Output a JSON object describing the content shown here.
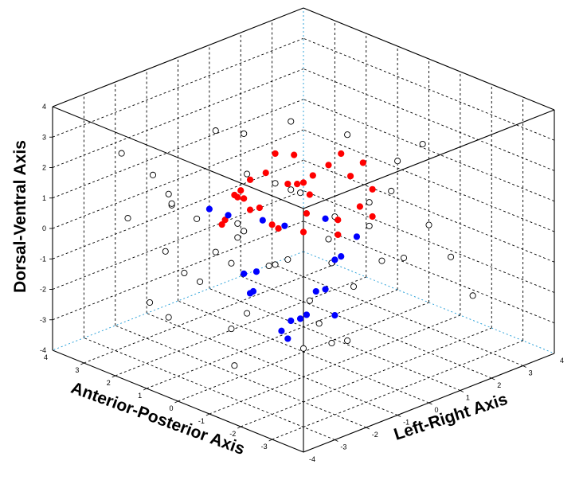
{
  "chart_data": {
    "type": "scatter3d",
    "title": "",
    "axes": {
      "x": {
        "label": "Anterior-Posterior Axis",
        "range": [
          -4,
          4
        ],
        "ticks": [
          "-3",
          "-2",
          "-1",
          "0",
          "1",
          "2",
          "3",
          "4"
        ]
      },
      "y": {
        "label": "Left-Right Axis",
        "range": [
          -4,
          4
        ],
        "ticks": [
          "-4",
          "-3",
          "-2",
          "-1",
          "0",
          "1",
          "2",
          "3",
          "4"
        ]
      },
      "z": {
        "label": "Dorsal-Ventral Axis",
        "range": [
          -4,
          4
        ],
        "ticks": [
          "-4",
          "-3",
          "-2",
          "-1",
          "0",
          "1",
          "2",
          "3",
          "4"
        ]
      }
    },
    "grid": true,
    "legend": null,
    "series": [
      {
        "marker": "open-circle",
        "color": "#000000",
        "points": [
          [
            2.5,
            -3.1,
            0.6
          ],
          [
            1.8,
            -2.6,
            -0.4
          ],
          [
            3.1,
            -1.7,
            1.2
          ],
          [
            -0.5,
            -2.8,
            -1.9
          ],
          [
            0.6,
            -1.2,
            -2.5
          ],
          [
            -1.3,
            -2.2,
            0.3
          ],
          [
            2.2,
            -0.6,
            -1.4
          ],
          [
            -2.4,
            -1.5,
            -2.1
          ],
          [
            1.0,
            -3.3,
            2.1
          ],
          [
            -1.9,
            -0.9,
            1.6
          ],
          [
            0.2,
            -1.9,
            0.9
          ],
          [
            2.8,
            -2.1,
            -2.7
          ],
          [
            -3.0,
            -2.5,
            -0.8
          ],
          [
            1.5,
            -0.4,
            2.7
          ],
          [
            -0.8,
            -3.0,
            -2.9
          ],
          [
            3.3,
            -0.9,
            -0.2
          ],
          [
            -2.7,
            -0.2,
            0.2
          ],
          [
            0.9,
            -2.4,
            -1.1
          ],
          [
            -1.5,
            -1.6,
            2.5
          ],
          [
            2.0,
            -1.4,
            0.1
          ],
          [
            -0.2,
            -0.7,
            -0.6
          ],
          [
            1.3,
            -2.9,
            1.5
          ],
          [
            -2.1,
            -3.2,
            1.0
          ],
          [
            2.6,
            0.3,
            -2.3
          ],
          [
            -1.1,
            0.5,
            -1.6
          ],
          [
            0.4,
            -3.4,
            -0.2
          ],
          [
            3.0,
            -2.8,
            2.4
          ],
          [
            -3.3,
            -1.2,
            2.0
          ],
          [
            1.7,
            0.8,
            0.5
          ],
          [
            -0.4,
            -2.2,
            2.9
          ],
          [
            0.0,
            0.2,
            -2.4
          ],
          [
            2.4,
            -1.9,
            -3.1
          ],
          [
            -2.9,
            -2.9,
            -1.5
          ],
          [
            1.1,
            -1.0,
            -0.3
          ],
          [
            -1.7,
            -0.3,
            -2.8
          ],
          [
            3.4,
            0.6,
            1.6
          ],
          [
            -0.9,
            1.2,
            0.8
          ],
          [
            0.7,
            1.5,
            -1.2
          ],
          [
            2.1,
            1.7,
            2.0
          ],
          [
            -2.2,
            1.0,
            -0.4
          ],
          [
            1.4,
            2.3,
            -2.6
          ],
          [
            -0.3,
            2.7,
            1.3
          ],
          [
            2.9,
            2.5,
            -0.9
          ],
          [
            -1.6,
            2.2,
            2.6
          ],
          [
            0.3,
            3.1,
            -0.1
          ],
          [
            -2.6,
            2.8,
            -2.2
          ],
          [
            1.9,
            3.3,
            1.0
          ],
          [
            -1.2,
            3.5,
            -1.8
          ],
          [
            3.2,
            1.3,
            -1.9
          ],
          [
            -3.1,
            0.9,
            1.1
          ]
        ]
      },
      {
        "marker": "filled-circle",
        "color": "#ff0000",
        "points": [
          [
            0.6,
            0.4,
            1.1
          ],
          [
            0.8,
            0.8,
            0.9
          ],
          [
            0.5,
            1.3,
            1.4
          ],
          [
            0.2,
            1.7,
            1.0
          ],
          [
            1.0,
            2.2,
            1.2
          ],
          [
            1.3,
            1.6,
            0.6
          ],
          [
            1.6,
            1.1,
            0.4
          ],
          [
            1.9,
            0.7,
            0.8
          ],
          [
            2.2,
            0.2,
            0.3
          ],
          [
            1.4,
            -0.3,
            0.2
          ],
          [
            1.1,
            -0.8,
            0.9
          ],
          [
            0.9,
            -1.3,
            1.3
          ],
          [
            0.4,
            -1.7,
            1.6
          ],
          [
            0.1,
            -0.9,
            0.5
          ],
          [
            -0.2,
            -0.2,
            0.1
          ],
          [
            -0.5,
            0.6,
            0.3
          ],
          [
            -0.8,
            1.0,
            0.7
          ],
          [
            -0.3,
            1.9,
            -0.2
          ],
          [
            2.0,
            -0.5,
            -0.3
          ],
          [
            1.7,
            0.3,
            -0.1
          ],
          [
            0.7,
            -0.1,
            -0.2
          ],
          [
            0.3,
            2.5,
            0.2
          ],
          [
            1.2,
            0.9,
            1.6
          ],
          [
            2.4,
            1.5,
            0.9
          ],
          [
            -0.6,
            -0.5,
            1.0
          ],
          [
            1.5,
            -1.1,
            0.0
          ],
          [
            0.0,
            1.1,
            -0.6
          ],
          [
            2.6,
            0.9,
            0.2
          ],
          [
            0.9,
            2.8,
            0.7
          ],
          [
            1.8,
            2.0,
            -0.4
          ]
        ]
      },
      {
        "marker": "filled-circle",
        "color": "#0000ff",
        "points": [
          [
            2.8,
            -0.2,
            -0.4
          ],
          [
            2.5,
            0.1,
            -0.6
          ],
          [
            2.0,
            0.7,
            -0.8
          ],
          [
            1.8,
            1.2,
            -1.1
          ],
          [
            1.2,
            1.9,
            -0.9
          ],
          [
            0.6,
            2.3,
            -1.4
          ],
          [
            0.3,
            1.5,
            -1.6
          ],
          [
            -0.1,
            0.9,
            -1.3
          ],
          [
            -0.4,
            0.3,
            -1.9
          ],
          [
            -0.7,
            -0.3,
            -1.6
          ],
          [
            -1.0,
            -0.9,
            -2.0
          ],
          [
            -1.3,
            -1.4,
            -1.8
          ],
          [
            -1.6,
            -2.0,
            -1.5
          ],
          [
            -1.9,
            -2.4,
            -1.8
          ],
          [
            -2.1,
            -2.8,
            -1.3
          ],
          [
            0.9,
            -0.6,
            -1.5
          ],
          [
            0.5,
            -1.2,
            -1.8
          ],
          [
            1.5,
            -0.4,
            -1.9
          ],
          [
            -0.2,
            -1.8,
            -1.2
          ],
          [
            -1.1,
            -0.1,
            -2.3
          ]
        ]
      }
    ]
  }
}
